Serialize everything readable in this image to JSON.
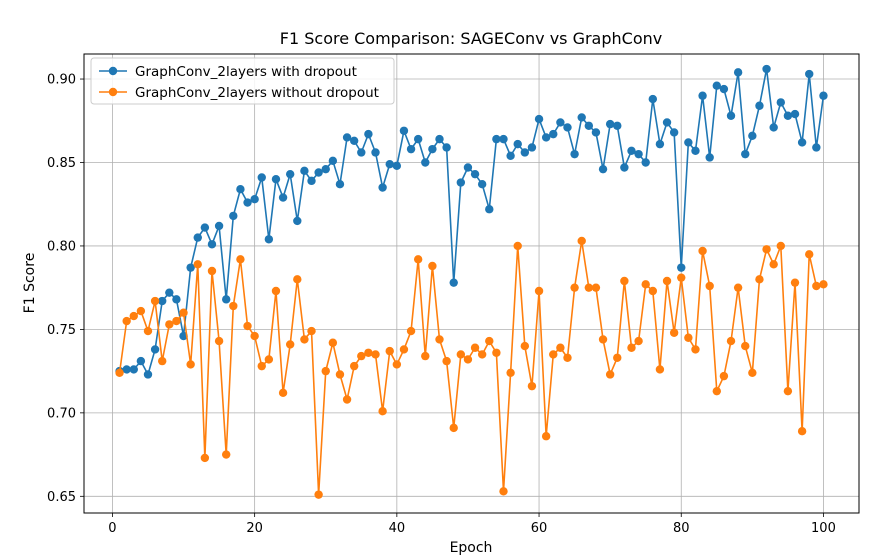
{
  "chart_data": {
    "type": "line",
    "title": "F1 Score Comparison: SAGEConv vs GraphConv",
    "xlabel": "Epoch",
    "ylabel": "F1 Score",
    "xlim": [
      -4,
      105
    ],
    "ylim": [
      0.64,
      0.915
    ],
    "xticks": [
      0,
      20,
      40,
      60,
      80,
      100
    ],
    "xtick_labels": [
      "0",
      "20",
      "40",
      "60",
      "80",
      "100"
    ],
    "yticks": [
      0.65,
      0.7,
      0.75,
      0.8,
      0.85,
      0.9
    ],
    "ytick_labels": [
      "0.65",
      "0.70",
      "0.75",
      "0.80",
      "0.85",
      "0.90"
    ],
    "grid": true,
    "legend_position": "top-left",
    "x": [
      1,
      2,
      3,
      4,
      5,
      6,
      7,
      8,
      9,
      10,
      11,
      12,
      13,
      14,
      15,
      16,
      17,
      18,
      19,
      20,
      21,
      22,
      23,
      24,
      25,
      26,
      27,
      28,
      29,
      30,
      31,
      32,
      33,
      34,
      35,
      36,
      37,
      38,
      39,
      40,
      41,
      42,
      43,
      44,
      45,
      46,
      47,
      48,
      49,
      50,
      51,
      52,
      53,
      54,
      55,
      56,
      57,
      58,
      59,
      60,
      61,
      62,
      63,
      64,
      65,
      66,
      67,
      68,
      69,
      70,
      71,
      72,
      73,
      74,
      75,
      76,
      77,
      78,
      79,
      80,
      81,
      82,
      83,
      84,
      85,
      86,
      87,
      88,
      89,
      90,
      91,
      92,
      93,
      94,
      95,
      96,
      97,
      98,
      99,
      100
    ],
    "series": [
      {
        "name": "GraphConv_2layers with dropout",
        "color": "#1f77b4",
        "values": [
          0.725,
          0.726,
          0.726,
          0.731,
          0.723,
          0.738,
          0.767,
          0.772,
          0.768,
          0.746,
          0.787,
          0.805,
          0.811,
          0.801,
          0.812,
          0.768,
          0.818,
          0.834,
          0.826,
          0.828,
          0.841,
          0.804,
          0.84,
          0.829,
          0.843,
          0.815,
          0.845,
          0.839,
          0.844,
          0.846,
          0.851,
          0.837,
          0.865,
          0.863,
          0.856,
          0.867,
          0.856,
          0.835,
          0.849,
          0.848,
          0.869,
          0.858,
          0.864,
          0.85,
          0.858,
          0.864,
          0.859,
          0.778,
          0.838,
          0.847,
          0.843,
          0.837,
          0.822,
          0.864,
          0.864,
          0.854,
          0.861,
          0.856,
          0.859,
          0.876,
          0.865,
          0.867,
          0.874,
          0.871,
          0.855,
          0.877,
          0.872,
          0.868,
          0.846,
          0.873,
          0.872,
          0.847,
          0.857,
          0.855,
          0.85,
          0.888,
          0.861,
          0.874,
          0.868,
          0.787,
          0.862,
          0.857,
          0.89,
          0.853,
          0.896,
          0.894,
          0.878,
          0.904,
          0.855,
          0.866,
          0.884,
          0.906,
          0.871,
          0.886,
          0.878,
          0.879,
          0.862,
          0.903,
          0.859,
          0.89
        ]
      },
      {
        "name": "GraphConv_2layers without dropout",
        "color": "#ff7f0e",
        "values": [
          0.724,
          0.755,
          0.758,
          0.761,
          0.749,
          0.767,
          0.731,
          0.753,
          0.755,
          0.76,
          0.729,
          0.789,
          0.673,
          0.785,
          0.743,
          0.675,
          0.764,
          0.792,
          0.752,
          0.746,
          0.728,
          0.732,
          0.773,
          0.712,
          0.741,
          0.78,
          0.744,
          0.749,
          0.651,
          0.725,
          0.742,
          0.723,
          0.708,
          0.728,
          0.734,
          0.736,
          0.735,
          0.701,
          0.737,
          0.729,
          0.738,
          0.749,
          0.792,
          0.734,
          0.788,
          0.744,
          0.731,
          0.691,
          0.735,
          0.732,
          0.739,
          0.735,
          0.743,
          0.736,
          0.653,
          0.724,
          0.8,
          0.74,
          0.716,
          0.773,
          0.686,
          0.735,
          0.739,
          0.733,
          0.775,
          0.803,
          0.775,
          0.775,
          0.744,
          0.723,
          0.733,
          0.779,
          0.739,
          0.743,
          0.777,
          0.773,
          0.726,
          0.779,
          0.748,
          0.781,
          0.745,
          0.738,
          0.797,
          0.776,
          0.713,
          0.722,
          0.743,
          0.775,
          0.74,
          0.724,
          0.78,
          0.798,
          0.789,
          0.8,
          0.713,
          0.778,
          0.689,
          0.795,
          0.776,
          0.777
        ]
      }
    ]
  }
}
